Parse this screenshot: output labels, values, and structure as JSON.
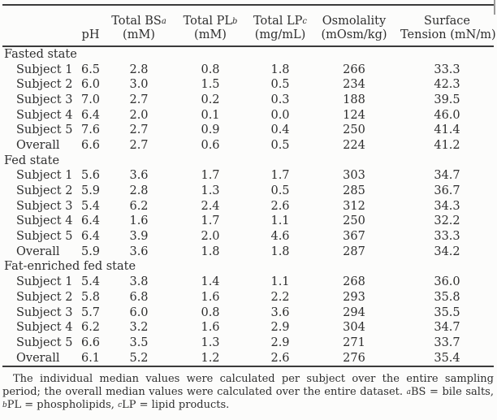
{
  "table": {
    "columns": [
      {
        "line1": "",
        "line2": "pH"
      },
      {
        "line1": "Total BS",
        "sup": "a",
        "line2": "(mM)"
      },
      {
        "line1": "Total PL",
        "sup": "b",
        "line2": "(mM)"
      },
      {
        "line1": "Total LP",
        "sup": "c",
        "line2": "(mg/mL)"
      },
      {
        "line1": "Osmolality",
        "line2": "(mOsm/kg)"
      },
      {
        "line1": "Surface",
        "line2": "Tension (mN/m)"
      }
    ],
    "sections": [
      {
        "label": "Fasted state",
        "rows": [
          {
            "label": "Subject 1",
            "values": [
              "6.5",
              "2.8",
              "0.8",
              "1.8",
              "266",
              "33.3"
            ]
          },
          {
            "label": "Subject 2",
            "values": [
              "6.0",
              "3.0",
              "1.5",
              "0.5",
              "234",
              "42.3"
            ]
          },
          {
            "label": "Subject 3",
            "values": [
              "7.0",
              "2.7",
              "0.2",
              "0.3",
              "188",
              "39.5"
            ]
          },
          {
            "label": "Subject 4",
            "values": [
              "6.4",
              "2.0",
              "0.1",
              "0.0",
              "124",
              "46.0"
            ]
          },
          {
            "label": "Subject 5",
            "values": [
              "7.6",
              "2.7",
              "0.9",
              "0.4",
              "250",
              "41.4"
            ]
          },
          {
            "label": "Overall",
            "values": [
              "6.6",
              "2.7",
              "0.6",
              "0.5",
              "224",
              "41.2"
            ]
          }
        ]
      },
      {
        "label": "Fed state",
        "rows": [
          {
            "label": "Subject 1",
            "values": [
              "5.6",
              "3.6",
              "1.7",
              "1.7",
              "303",
              "34.7"
            ]
          },
          {
            "label": "Subject 2",
            "values": [
              "5.9",
              "2.8",
              "1.3",
              "0.5",
              "285",
              "36.7"
            ]
          },
          {
            "label": "Subject 3",
            "values": [
              "5.4",
              "6.2",
              "2.4",
              "2.6",
              "312",
              "34.3"
            ]
          },
          {
            "label": "Subject 4",
            "values": [
              "6.4",
              "1.6",
              "1.7",
              "1.1",
              "250",
              "32.2"
            ]
          },
          {
            "label": "Subject 5",
            "values": [
              "6.4",
              "3.9",
              "2.0",
              "4.6",
              "367",
              "33.3"
            ]
          },
          {
            "label": "Overall",
            "values": [
              "5.9",
              "3.6",
              "1.8",
              "1.8",
              "287",
              "34.2"
            ]
          }
        ]
      },
      {
        "label": "Fat-enriched fed state",
        "rows": [
          {
            "label": "Subject 1",
            "values": [
              "5.4",
              "3.8",
              "1.4",
              "1.1",
              "268",
              "36.0"
            ]
          },
          {
            "label": "Subject 2",
            "values": [
              "5.8",
              "6.8",
              "1.6",
              "2.2",
              "293",
              "35.8"
            ]
          },
          {
            "label": "Subject 3",
            "values": [
              "5.7",
              "6.0",
              "0.8",
              "3.6",
              "294",
              "35.5"
            ]
          },
          {
            "label": "Subject 4",
            "values": [
              "6.2",
              "3.2",
              "1.6",
              "2.9",
              "304",
              "34.7"
            ]
          },
          {
            "label": "Subject 5",
            "values": [
              "6.6",
              "3.5",
              "1.3",
              "2.9",
              "271",
              "33.7"
            ]
          },
          {
            "label": "Overall",
            "values": [
              "6.1",
              "5.2",
              "1.2",
              "2.6",
              "276",
              "35.4"
            ]
          }
        ]
      }
    ]
  },
  "footnote": {
    "segments": [
      {
        "text": "The individual median values were calculated per subject over the entire sampling period; the overall median values were calculated over the entire dataset. "
      },
      {
        "sup": "a"
      },
      {
        "text": "BS = bile salts, "
      },
      {
        "sup": "b"
      },
      {
        "text": "PL = phospholipids, "
      },
      {
        "sup": "c"
      },
      {
        "text": "LP = lipid products."
      }
    ]
  },
  "colors": {
    "background": "#fcfcfb",
    "text": "#2e2e2e",
    "rule": "#3b3b3b"
  }
}
